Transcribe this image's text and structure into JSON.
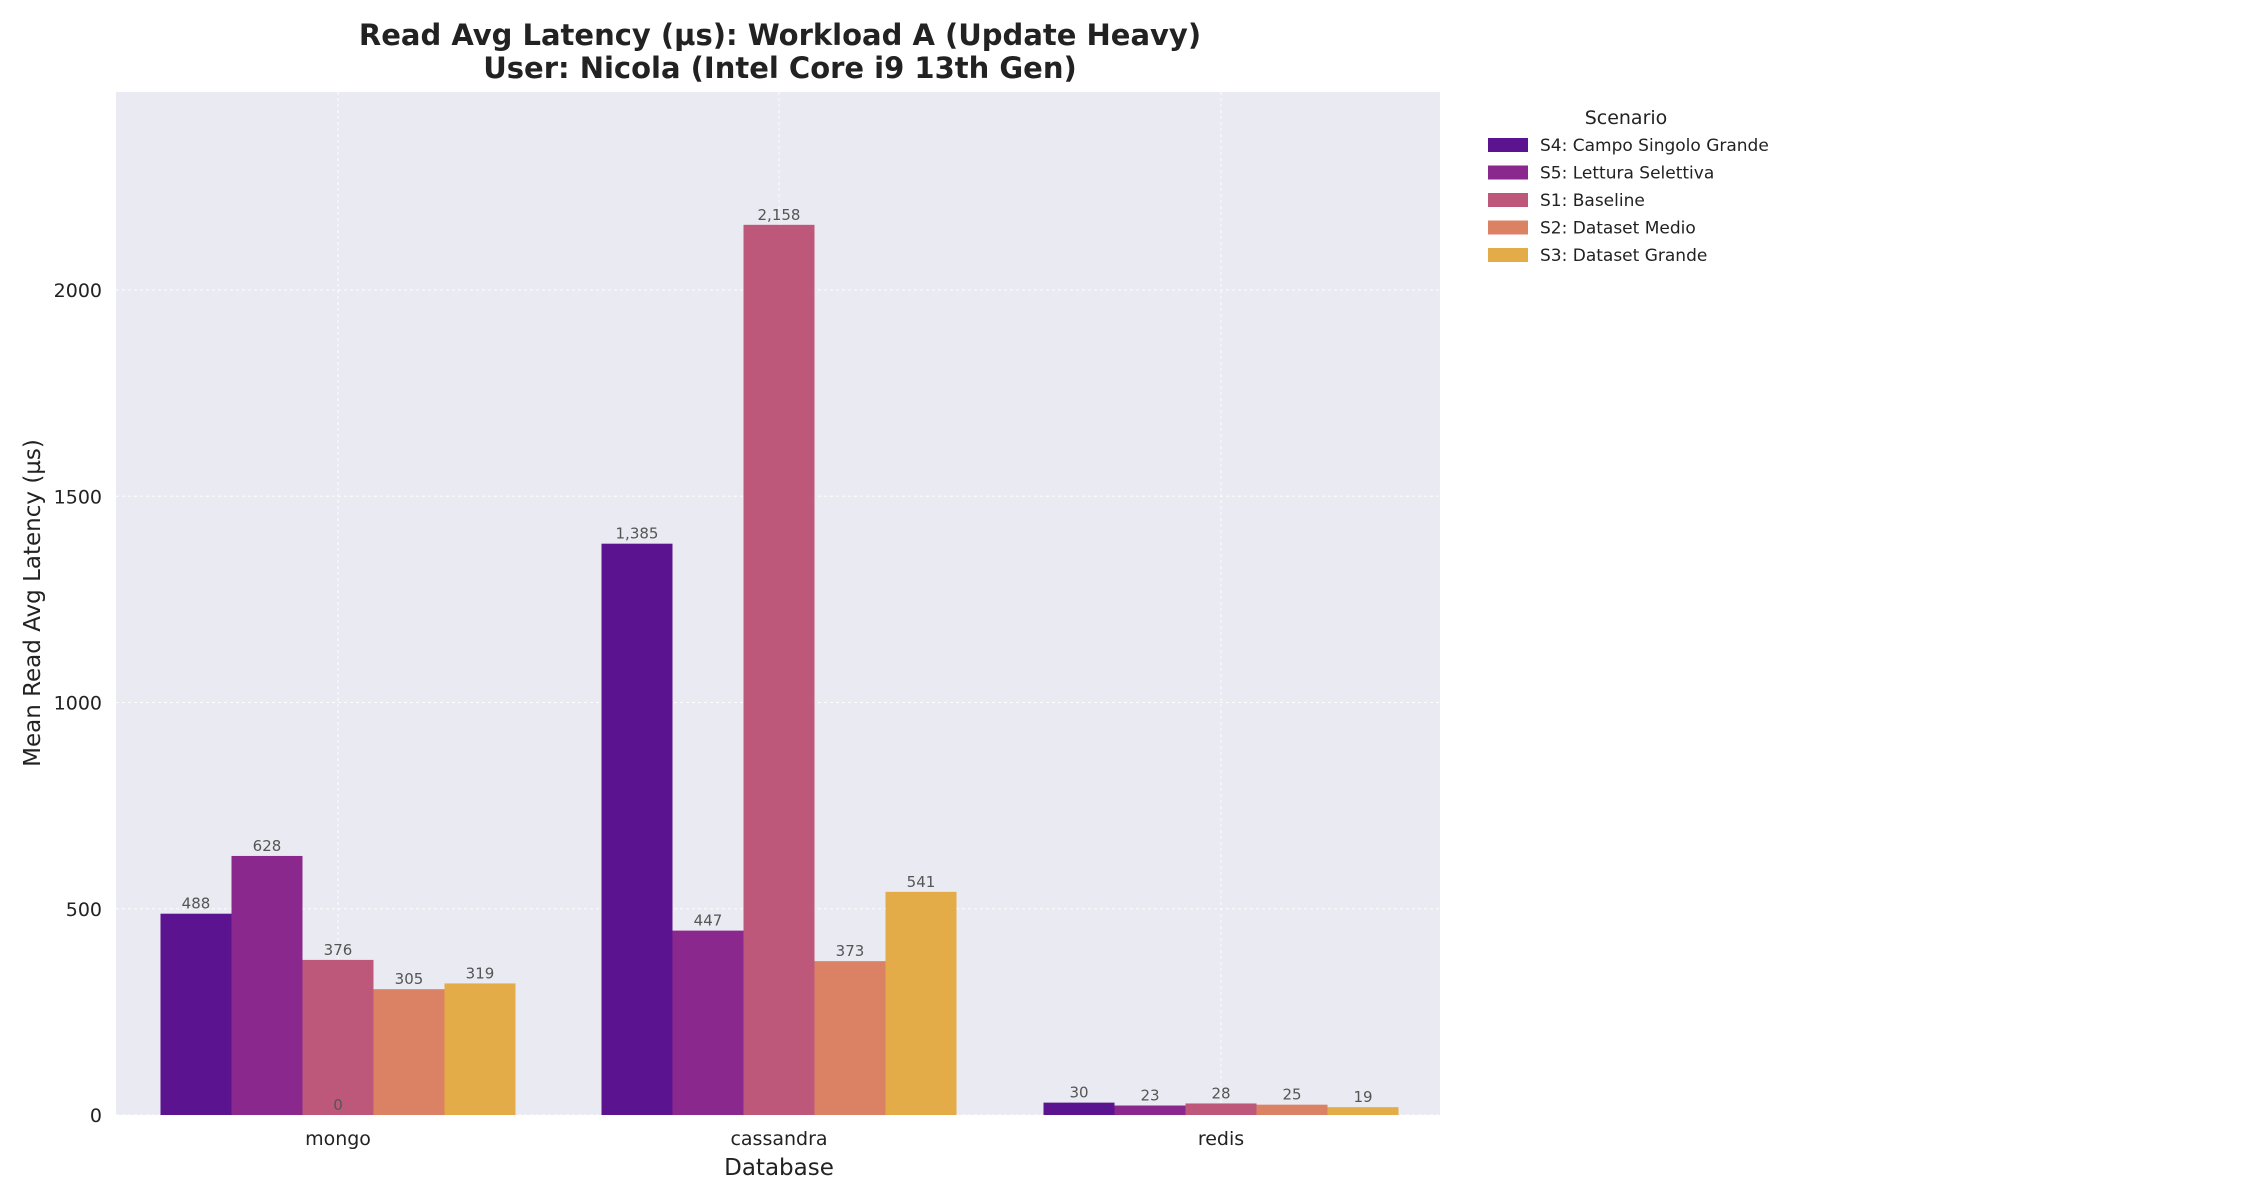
{
  "chart_data": {
    "type": "bar",
    "title": "Read Avg Latency (µs): Workload A (Update Heavy)",
    "subtitle": "User: Nicola (Intel Core i9 13th Gen)",
    "xlabel": "Database",
    "ylabel": "Mean Read Avg Latency (µs)",
    "categories": [
      "mongo",
      "cassandra",
      "redis"
    ],
    "ylim": [
      0,
      2480
    ],
    "yticks": [
      0,
      500,
      1000,
      1500,
      2000
    ],
    "ytick_labels": [
      "0",
      "500",
      "1000",
      "1500",
      "2000"
    ],
    "grid": true,
    "legend": {
      "title": "Scenario",
      "placement": "outside-top-right"
    },
    "series": [
      {
        "name": "S4: Campo Singolo Grande",
        "color": "#5c1390",
        "values": [
          488,
          1385,
          30
        ],
        "labels": [
          "488",
          "1,385",
          "30"
        ]
      },
      {
        "name": "S5: Lettura Selettiva",
        "color": "#8b288e",
        "values": [
          628,
          447,
          23
        ],
        "labels": [
          "628",
          "447",
          "23"
        ]
      },
      {
        "name": "S1: Baseline",
        "color": "#bd587a",
        "values": [
          376,
          2158,
          28
        ],
        "labels": [
          "376",
          "2,158",
          "28"
        ]
      },
      {
        "name": "S2: Dataset Medio",
        "color": "#dc8264",
        "values": [
          305,
          373,
          25
        ],
        "labels": [
          "305",
          "373",
          "25"
        ]
      },
      {
        "name": "S3: Dataset Grande",
        "color": "#e4ac48",
        "values": [
          319,
          541,
          19
        ],
        "labels": [
          "319",
          "541",
          "19"
        ]
      }
    ],
    "annotations": [
      {
        "text": "0",
        "category": "mongo",
        "y": 0
      }
    ]
  }
}
